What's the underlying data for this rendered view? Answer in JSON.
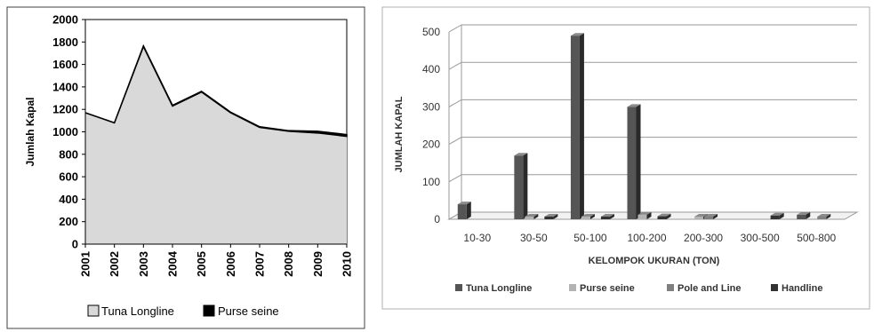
{
  "chart_data": [
    {
      "type": "area",
      "ylabel": "Jumlah Kapal",
      "xlabel": "",
      "ylim": [
        0,
        2000
      ],
      "yticks": [
        "0",
        "200",
        "400",
        "600",
        "800",
        "1000",
        "1200",
        "1400",
        "1600",
        "1800",
        "2000"
      ],
      "x": [
        "2001",
        "2002",
        "2003",
        "2004",
        "2005",
        "2006",
        "2007",
        "2008",
        "2009",
        "2010"
      ],
      "series": [
        {
          "name": "Tuna Longline",
          "values": [
            1170,
            1080,
            1760,
            1230,
            1355,
            1170,
            1040,
            1005,
            990,
            960
          ],
          "color": "#d9d9d9"
        },
        {
          "name": "Purse seine",
          "values": [
            0,
            0,
            5,
            5,
            5,
            5,
            5,
            5,
            15,
            15
          ],
          "color": "#000000"
        }
      ],
      "legend": "bottom",
      "grid": false
    },
    {
      "type": "bar",
      "ylabel": "JUMLAH KAPAL",
      "xlabel": "KELOMPOK UKURAN (TON)",
      "ylim": [
        0,
        500
      ],
      "yticks": [
        "0",
        "100",
        "200",
        "300",
        "400",
        "500"
      ],
      "categories": [
        "10-30",
        "30-50",
        "50-100",
        "100-200",
        "200-300",
        "300-500",
        "500-800"
      ],
      "series": [
        {
          "name": "Tuna Longline",
          "values": [
            40,
            170,
            490,
            300,
            0,
            0,
            12
          ],
          "color": "#555555"
        },
        {
          "name": "Purse seine",
          "values": [
            0,
            2,
            5,
            12,
            4,
            0,
            0
          ],
          "color": "#b3b3b3"
        },
        {
          "name": "Pole and Line",
          "values": [
            0,
            0,
            0,
            0,
            6,
            0,
            6
          ],
          "color": "#808080"
        },
        {
          "name": "Handline",
          "values": [
            0,
            3,
            4,
            8,
            0,
            10,
            0
          ],
          "color": "#333333"
        }
      ],
      "legend": "bottom",
      "grid": true
    }
  ]
}
